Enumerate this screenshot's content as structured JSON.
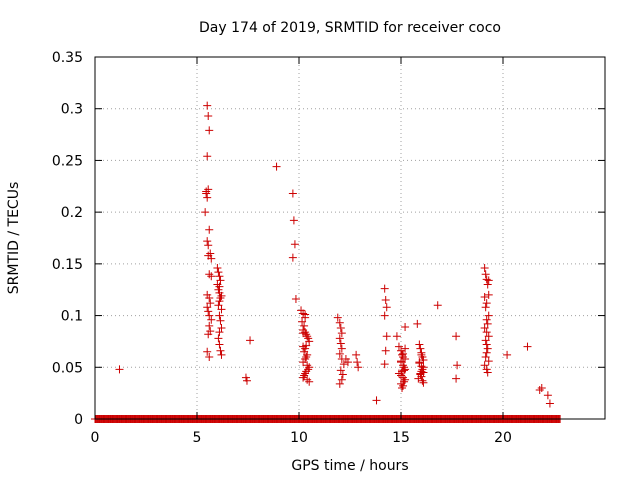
{
  "chart_data": {
    "type": "scatter",
    "title": "Day 174 of 2019, SRMTID for receiver coco",
    "xlabel": "GPS time / hours",
    "ylabel": "SRMTID / TECUs",
    "xlim": [
      0,
      25
    ],
    "ylim": [
      0,
      0.35
    ],
    "xticks": [
      0,
      5,
      10,
      15,
      20
    ],
    "yticks": [
      0,
      0.05,
      0.1,
      0.15,
      0.2,
      0.25,
      0.3,
      0.35
    ],
    "xtick_labels": [
      "0",
      "5",
      "10",
      "15",
      "20"
    ],
    "ytick_labels": [
      "0",
      "0.05",
      "0.1",
      "0.15",
      "0.2",
      "0.25",
      "0.3",
      "0.35"
    ],
    "grid": true,
    "marker": "+",
    "color": "#cc0000",
    "baseline": {
      "y": 0,
      "x_start": 0,
      "x_end": 22.8,
      "step": 0.04
    },
    "series": [
      {
        "name": "SRMTID",
        "x": [
          1.2,
          5.4,
          5.45,
          5.5,
          5.55,
          5.6,
          5.5,
          5.55,
          5.45,
          5.5,
          5.6,
          5.65,
          5.7,
          5.5,
          5.55,
          5.6,
          5.7,
          5.5,
          5.6,
          5.65,
          5.5,
          5.55,
          5.6,
          5.7,
          5.6,
          5.65,
          5.55,
          5.5,
          5.6,
          5.55,
          6.0,
          6.05,
          6.1,
          6.15,
          6.0,
          6.05,
          6.1,
          6.2,
          6.15,
          6.1,
          6.05,
          6.2,
          6.1,
          6.15,
          6.2,
          6.1,
          6.05,
          6.1,
          6.15,
          6.2,
          6.1,
          7.4,
          7.45,
          7.6,
          8.9,
          9.7,
          9.75,
          9.8,
          9.7,
          9.85,
          10.1,
          10.2,
          10.3,
          10.15,
          10.25,
          10.2,
          10.3,
          10.35,
          10.4,
          10.45,
          10.5,
          10.2,
          10.3,
          10.25,
          10.4,
          10.35,
          10.3,
          10.2,
          10.4,
          10.5,
          10.45,
          10.35,
          10.3,
          10.25,
          10.2,
          10.4,
          10.5,
          10.3,
          10.2,
          10.35,
          11.9,
          12.0,
          12.05,
          12.1,
          12.0,
          12.05,
          12.1,
          12.0,
          12.1,
          12.2,
          12.05,
          12.15,
          12.1,
          12.0,
          12.3,
          12.4,
          12.8,
          12.9,
          12.85,
          13.8,
          14.2,
          14.25,
          14.3,
          14.2,
          14.3,
          14.25,
          14.2,
          14.8,
          14.9,
          15.0,
          15.05,
          15.1,
          15.2,
          15.0,
          15.1,
          15.15,
          15.2,
          15.05,
          14.9,
          15.0,
          15.1,
          15.2,
          15.15,
          15.0,
          15.1,
          15.05,
          15.2,
          15.1,
          15.0,
          15.15,
          15.2,
          15.8,
          15.9,
          15.95,
          16.0,
          16.05,
          16.1,
          15.9,
          16.0,
          16.05,
          16.1,
          15.95,
          16.0,
          15.85,
          16.05,
          16.1,
          16.0,
          15.9,
          16.1,
          16.0,
          15.95,
          16.8,
          17.7,
          17.75,
          17.7,
          19.1,
          19.15,
          19.2,
          19.25,
          19.3,
          19.1,
          19.2,
          19.15,
          19.3,
          19.2,
          19.25,
          19.1,
          19.2,
          19.3,
          19.15,
          19.2,
          19.25,
          19.2,
          19.15,
          19.3,
          19.1,
          19.2,
          19.25,
          19.3,
          20.2,
          21.2,
          21.8,
          21.9,
          22.2,
          22.3
        ],
        "y": [
          0.048,
          0.2,
          0.22,
          0.303,
          0.293,
          0.279,
          0.254,
          0.222,
          0.218,
          0.214,
          0.183,
          0.16,
          0.155,
          0.172,
          0.168,
          0.14,
          0.138,
          0.12,
          0.117,
          0.112,
          0.108,
          0.104,
          0.1,
          0.096,
          0.09,
          0.085,
          0.082,
          0.065,
          0.06,
          0.158,
          0.146,
          0.142,
          0.138,
          0.134,
          0.13,
          0.125,
          0.122,
          0.119,
          0.117,
          0.114,
          0.11,
          0.106,
          0.1,
          0.095,
          0.088,
          0.084,
          0.078,
          0.072,
          0.066,
          0.062,
          0.128,
          0.04,
          0.037,
          0.076,
          0.244,
          0.218,
          0.192,
          0.169,
          0.156,
          0.116,
          0.105,
          0.102,
          0.098,
          0.094,
          0.09,
          0.086,
          0.084,
          0.082,
          0.08,
          0.078,
          0.075,
          0.07,
          0.068,
          0.065,
          0.062,
          0.06,
          0.058,
          0.055,
          0.052,
          0.05,
          0.048,
          0.046,
          0.044,
          0.042,
          0.04,
          0.038,
          0.036,
          0.101,
          0.083,
          0.071,
          0.098,
          0.093,
          0.088,
          0.083,
          0.078,
          0.073,
          0.068,
          0.063,
          0.058,
          0.053,
          0.047,
          0.043,
          0.038,
          0.034,
          0.058,
          0.055,
          0.062,
          0.05,
          0.055,
          0.018,
          0.126,
          0.115,
          0.108,
          0.1,
          0.08,
          0.066,
          0.053,
          0.08,
          0.07,
          0.066,
          0.062,
          0.06,
          0.058,
          0.055,
          0.052,
          0.05,
          0.048,
          0.046,
          0.044,
          0.042,
          0.04,
          0.038,
          0.036,
          0.034,
          0.032,
          0.03,
          0.068,
          0.063,
          0.056,
          0.047,
          0.089,
          0.092,
          0.072,
          0.068,
          0.064,
          0.06,
          0.057,
          0.054,
          0.051,
          0.048,
          0.045,
          0.043,
          0.041,
          0.039,
          0.037,
          0.035,
          0.062,
          0.055,
          0.05,
          0.046,
          0.044,
          0.11,
          0.08,
          0.052,
          0.039,
          0.146,
          0.14,
          0.135,
          0.13,
          0.12,
          0.118,
          0.112,
          0.108,
          0.1,
          0.096,
          0.092,
          0.088,
          0.084,
          0.08,
          0.076,
          0.072,
          0.068,
          0.064,
          0.06,
          0.056,
          0.052,
          0.048,
          0.045,
          0.134,
          0.062,
          0.07,
          0.028,
          0.03,
          0.023,
          0.015
        ]
      }
    ]
  }
}
